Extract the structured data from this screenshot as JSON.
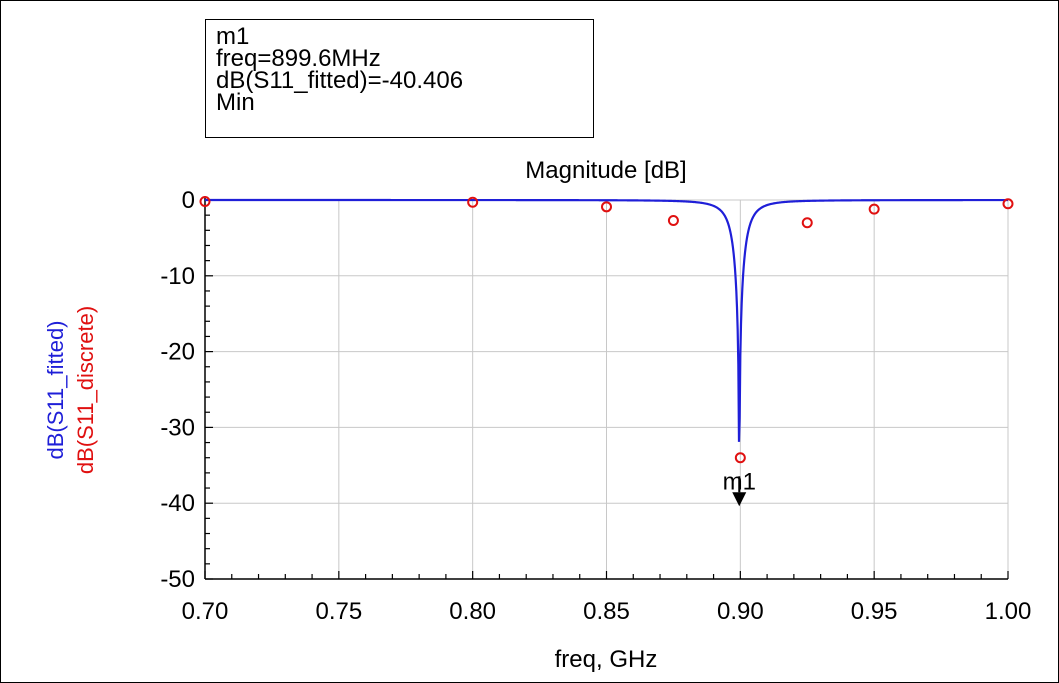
{
  "marker_box": {
    "line1": "m1",
    "line2": "freq=899.6MHz",
    "line3": "dB(S11_fitted)=-40.406",
    "line4": "Min"
  },
  "colors": {
    "fitted": "#1f1fd8",
    "discrete": "#e01010",
    "grid": "#c8c8c8",
    "axis": "#000000",
    "marker": "#000000"
  },
  "chart_data": {
    "type": "line",
    "title": "Magnitude [dB]",
    "xlabel": "freq, GHz",
    "ylabels": [
      {
        "text": "dB(S11_fitted)",
        "color": "#1f1fd8"
      },
      {
        "text": "dB(S11_discrete)",
        "color": "#e01010"
      }
    ],
    "xlim": [
      0.7,
      1.0
    ],
    "ylim": [
      -50,
      0
    ],
    "xticks": [
      0.7,
      0.75,
      0.8,
      0.85,
      0.9,
      0.95,
      1.0
    ],
    "xtick_labels": [
      "0.70",
      "0.75",
      "0.80",
      "0.85",
      "0.90",
      "0.95",
      "1.00"
    ],
    "yticks": [
      0,
      -10,
      -20,
      -30,
      -40,
      -50
    ],
    "ytick_labels": [
      "0",
      "-10",
      "-20",
      "-30",
      "-40",
      "-50"
    ],
    "grid": true,
    "series": [
      {
        "name": "dB(S11_fitted)",
        "style": "line",
        "resonance": {
          "f0": 0.8996,
          "min_db": -40.406,
          "bandwidth": 0.0085
        }
      },
      {
        "name": "dB(S11_discrete)",
        "style": "circles",
        "x": [
          0.7,
          0.8,
          0.85,
          0.875,
          0.9,
          0.925,
          0.95,
          1.0
        ],
        "y": [
          -0.2,
          -0.3,
          -0.9,
          -2.7,
          -34.0,
          -3.0,
          -1.2,
          -0.5
        ]
      }
    ],
    "markers": [
      {
        "label": "m1",
        "x": 0.8996,
        "y": -40.406
      }
    ]
  }
}
